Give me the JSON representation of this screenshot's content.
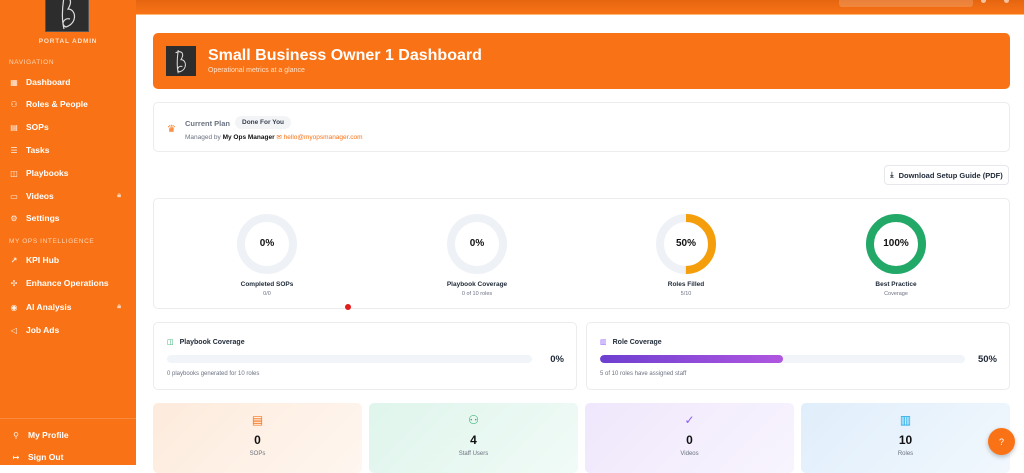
{
  "sidebar": {
    "role_label": "PORTAL ADMIN",
    "section_nav": "NAVIGATION",
    "nav_items": [
      {
        "label": "Dashboard",
        "icon": "grid-icon"
      },
      {
        "label": "Roles & People",
        "icon": "users-icon"
      },
      {
        "label": "SOPs",
        "icon": "document-icon"
      },
      {
        "label": "Tasks",
        "icon": "checklist-icon"
      },
      {
        "label": "Playbooks",
        "icon": "book-icon"
      },
      {
        "label": "Videos",
        "icon": "video-icon",
        "locked": true
      },
      {
        "label": "Settings",
        "icon": "gear-icon"
      }
    ],
    "section_intel": "MY OPS INTELLIGENCE",
    "intel_items": [
      {
        "label": "KPI Hub",
        "icon": "trend-icon"
      },
      {
        "label": "Enhance Operations",
        "icon": "sparkle-icon"
      },
      {
        "label": "AI Analysis",
        "icon": "brain-icon",
        "locked": true
      },
      {
        "label": "Job Ads",
        "icon": "megaphone-icon"
      }
    ],
    "footer": [
      {
        "label": "My Profile",
        "icon": "user-icon"
      },
      {
        "label": "Sign Out",
        "icon": "sign-out-icon"
      }
    ]
  },
  "header": {
    "title": "Small Business Owner 1 Dashboard",
    "subtitle": "Operational metrics at a glance"
  },
  "plan": {
    "label": "Current Plan",
    "badge": "Done For You",
    "managed_by_prefix": "Managed by",
    "manager": "My Ops Manager",
    "email": "hello@myopsmanager.com"
  },
  "download_button": "Download Setup Guide (PDF)",
  "donuts": [
    {
      "value": "0%",
      "percent": 0,
      "title": "Completed SOPs",
      "sub": "0/0",
      "color": "#e5e7eb"
    },
    {
      "value": "0%",
      "percent": 0,
      "title": "Playbook Coverage",
      "sub": "0 of 10 roles",
      "color": "#e5e7eb"
    },
    {
      "value": "50%",
      "percent": 50,
      "title": "Roles Filled",
      "sub": "5/10",
      "color": "#f59e0b"
    },
    {
      "value": "100%",
      "percent": 100,
      "title": "Best Practice",
      "sub": "Coverage",
      "color": "#22a867"
    }
  ],
  "playbook_coverage": {
    "title": "Playbook Coverage",
    "value": "0%",
    "percent": 0,
    "desc": "0 playbooks generated for 10 roles"
  },
  "role_coverage": {
    "title": "Role Coverage",
    "value": "50%",
    "percent": 50,
    "desc": "5 of 10 roles have assigned staff"
  },
  "stats": [
    {
      "value": "0",
      "label": "SOPs",
      "icon": "document-icon",
      "color": "#f97316",
      "bg": "#fdebdc"
    },
    {
      "value": "4",
      "label": "Staff Users",
      "icon": "users-icon",
      "color": "#22a867",
      "bg": "#dff5ec"
    },
    {
      "value": "0",
      "label": "Videos",
      "icon": "check-circle-icon",
      "color": "#8b5cf6",
      "bg": "#efe7fc"
    },
    {
      "value": "10",
      "label": "Roles",
      "icon": "briefcase-icon",
      "color": "#0ea5e9",
      "bg": "#e0eefb"
    }
  ],
  "colors": {
    "brand": "#f97316"
  }
}
